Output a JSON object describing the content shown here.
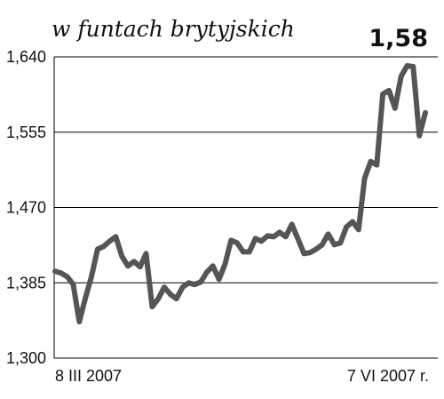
{
  "header": {
    "subtitle": "w funtach brytyjskich",
    "current_value": "1,58"
  },
  "colors": {
    "line": "#555555",
    "grid": "#000000",
    "text": "#111111"
  },
  "chart_data": {
    "type": "line",
    "title": "",
    "subtitle": "w funtach brytyjskich",
    "xlabel": "",
    "ylabel": "",
    "ylim": [
      1.3,
      1.64
    ],
    "y_ticks": [
      1.3,
      1.385,
      1.47,
      1.555,
      1.64
    ],
    "y_tick_labels": [
      "1,300",
      "1,385",
      "1,470",
      "1,555",
      "1,640"
    ],
    "x_tick_labels": [
      "8 III 2007",
      "7 VI 2007 r."
    ],
    "grid": "horizontal",
    "series": [
      {
        "values": [
          1.398,
          1.396,
          1.392,
          1.383,
          1.341,
          1.368,
          1.392,
          1.423,
          1.426,
          1.432,
          1.437,
          1.415,
          1.404,
          1.409,
          1.403,
          1.418,
          1.358,
          1.367,
          1.38,
          1.372,
          1.367,
          1.38,
          1.385,
          1.383,
          1.386,
          1.397,
          1.404,
          1.389,
          1.406,
          1.433,
          1.43,
          1.42,
          1.42,
          1.435,
          1.432,
          1.438,
          1.437,
          1.442,
          1.437,
          1.451,
          1.435,
          1.418,
          1.419,
          1.423,
          1.428,
          1.44,
          1.428,
          1.43,
          1.448,
          1.454,
          1.445,
          1.503,
          1.522,
          1.518,
          1.598,
          1.602,
          1.582,
          1.618,
          1.63,
          1.629,
          1.551,
          1.577
        ]
      }
    ]
  }
}
